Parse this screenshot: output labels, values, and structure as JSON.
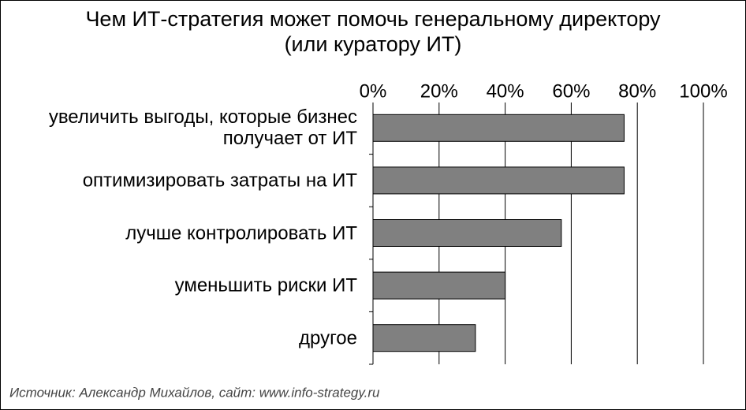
{
  "chart_data": {
    "type": "bar",
    "orientation": "horizontal",
    "title": [
      "Чем ИТ-стратегия может помочь генеральному директору",
      "(или куратору ИТ)"
    ],
    "categories": [
      "увеличить выгоды, которые бизнес получает от ИТ",
      "оптимизировать затраты на ИТ",
      "лучше контролировать ИТ",
      "уменьшить риски ИТ",
      "другое"
    ],
    "values": [
      76,
      76,
      57,
      40,
      31
    ],
    "color": "#808080",
    "xlim": [
      0,
      100
    ],
    "xticks": [
      {
        "value": 0,
        "label": "0%"
      },
      {
        "value": 20,
        "label": "20%"
      },
      {
        "value": 40,
        "label": "40%"
      },
      {
        "value": 60,
        "label": "60%"
      },
      {
        "value": 80,
        "label": "80%"
      },
      {
        "value": 100,
        "label": "100%"
      }
    ],
    "grid": true,
    "source": "Источник: Александр Михайлов, сайт: www.info-strategy.ru"
  }
}
